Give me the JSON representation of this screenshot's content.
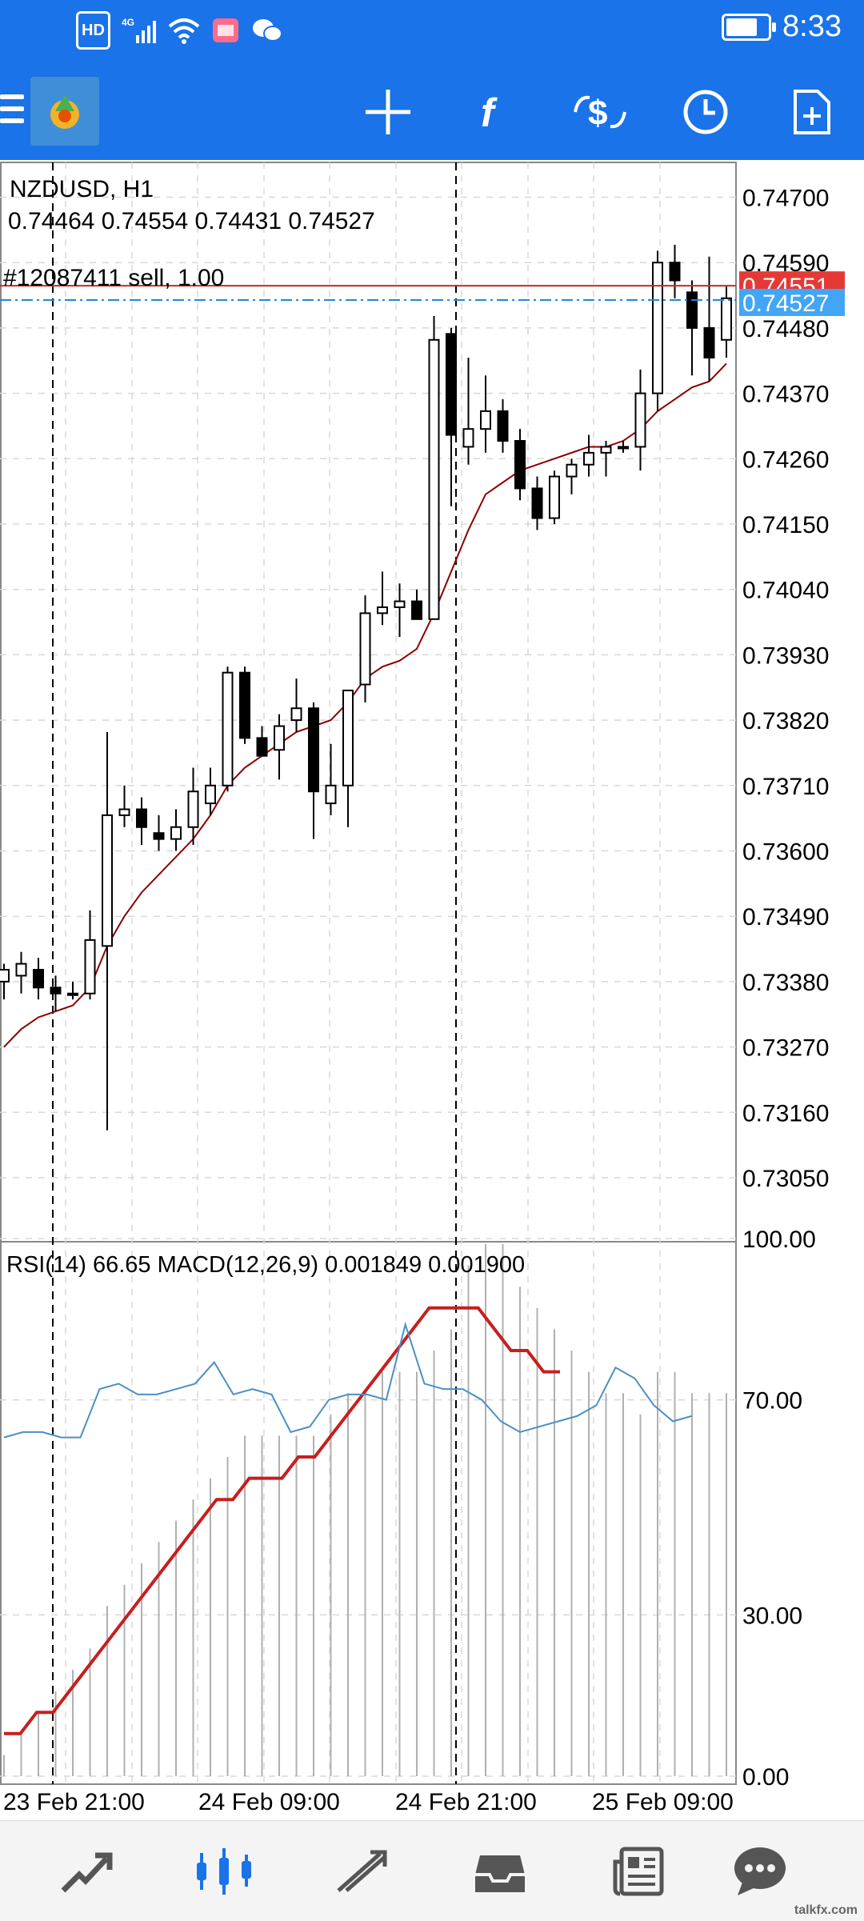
{
  "status_bar": {
    "time": "8:33",
    "hd_badge": "HD",
    "network": "4G"
  },
  "toolbar": {
    "menu": "menu-icon",
    "app_logo": "metatrader-logo",
    "buttons": [
      "crosshair-icon",
      "indicators-icon",
      "trade-icon",
      "clock-icon",
      "new-order-icon"
    ],
    "function_glyph": "f"
  },
  "chart": {
    "symbol": "NZDUSD, H1",
    "ohlc": "0.74464 0.74554 0.74431 0.74527",
    "position_label": "#12087411 sell, 1.00",
    "position_price": "0.74551",
    "bid_price": "0.74527",
    "price_axis": [
      "0.74700",
      "0.74590",
      "0.74480",
      "0.74370",
      "0.74260",
      "0.74150",
      "0.74040",
      "0.73930",
      "0.73820",
      "0.73710",
      "0.73600",
      "0.73490",
      "0.73380",
      "0.73270",
      "0.73160",
      "0.73050"
    ],
    "indicator_label": "RSI(14) 66.65 MACD(12,26,9) 0.001849 0.001900",
    "indicator_axis": [
      "100.00",
      "70.00",
      "30.00",
      "0.00"
    ],
    "time_axis": [
      "23 Feb 21:00",
      "24 Feb 09:00",
      "24 Feb 21:00",
      "25 Feb 09:00"
    ],
    "colors": {
      "position_line": "#c62828",
      "bid_line": "#1e88e5",
      "ma_line": "#8b0000",
      "rsi_line": "#4a90c4",
      "macd_signal": "#c81e1e"
    }
  },
  "chart_data": {
    "type": "candlestick",
    "symbol": "NZDUSD",
    "timeframe": "H1",
    "ylim": [
      0.7298,
      0.7475
    ],
    "candles": [
      {
        "o": 0.7338,
        "h": 0.7341,
        "l": 0.7335,
        "c": 0.734
      },
      {
        "o": 0.7339,
        "h": 0.7343,
        "l": 0.7336,
        "c": 0.7341
      },
      {
        "o": 0.734,
        "h": 0.7342,
        "l": 0.7335,
        "c": 0.7337
      },
      {
        "o": 0.7337,
        "h": 0.7339,
        "l": 0.7333,
        "c": 0.7336
      },
      {
        "o": 0.7336,
        "h": 0.7338,
        "l": 0.7335,
        "c": 0.7336
      },
      {
        "o": 0.7336,
        "h": 0.735,
        "l": 0.7335,
        "c": 0.7345
      },
      {
        "o": 0.7344,
        "h": 0.738,
        "l": 0.7313,
        "c": 0.7366
      },
      {
        "o": 0.7366,
        "h": 0.7371,
        "l": 0.7364,
        "c": 0.7367
      },
      {
        "o": 0.7367,
        "h": 0.7369,
        "l": 0.7361,
        "c": 0.7364
      },
      {
        "o": 0.7363,
        "h": 0.7366,
        "l": 0.736,
        "c": 0.7362
      },
      {
        "o": 0.7362,
        "h": 0.7367,
        "l": 0.736,
        "c": 0.7364
      },
      {
        "o": 0.7364,
        "h": 0.7374,
        "l": 0.7361,
        "c": 0.737
      },
      {
        "o": 0.7368,
        "h": 0.7374,
        "l": 0.7366,
        "c": 0.7371
      },
      {
        "o": 0.7371,
        "h": 0.7391,
        "l": 0.737,
        "c": 0.739
      },
      {
        "o": 0.739,
        "h": 0.7391,
        "l": 0.7378,
        "c": 0.7379
      },
      {
        "o": 0.7379,
        "h": 0.7381,
        "l": 0.7376,
        "c": 0.7376
      },
      {
        "o": 0.7377,
        "h": 0.7383,
        "l": 0.7372,
        "c": 0.7381
      },
      {
        "o": 0.7382,
        "h": 0.7389,
        "l": 0.738,
        "c": 0.7384
      },
      {
        "o": 0.7384,
        "h": 0.7385,
        "l": 0.7362,
        "c": 0.737
      },
      {
        "o": 0.7368,
        "h": 0.7378,
        "l": 0.7366,
        "c": 0.7371
      },
      {
        "o": 0.7371,
        "h": 0.7387,
        "l": 0.7364,
        "c": 0.7387
      },
      {
        "o": 0.7388,
        "h": 0.7403,
        "l": 0.7385,
        "c": 0.74
      },
      {
        "o": 0.74,
        "h": 0.7407,
        "l": 0.7398,
        "c": 0.7401
      },
      {
        "o": 0.7401,
        "h": 0.7405,
        "l": 0.7396,
        "c": 0.7402
      },
      {
        "o": 0.7402,
        "h": 0.7404,
        "l": 0.7399,
        "c": 0.7399
      },
      {
        "o": 0.7399,
        "h": 0.745,
        "l": 0.7399,
        "c": 0.7446
      },
      {
        "o": 0.7447,
        "h": 0.7448,
        "l": 0.7418,
        "c": 0.743
      },
      {
        "o": 0.7428,
        "h": 0.7443,
        "l": 0.7425,
        "c": 0.7431
      },
      {
        "o": 0.7431,
        "h": 0.744,
        "l": 0.7427,
        "c": 0.7434
      },
      {
        "o": 0.7434,
        "h": 0.7436,
        "l": 0.7427,
        "c": 0.7429
      },
      {
        "o": 0.7429,
        "h": 0.7431,
        "l": 0.7419,
        "c": 0.7421
      },
      {
        "o": 0.7421,
        "h": 0.7423,
        "l": 0.7414,
        "c": 0.7416
      },
      {
        "o": 0.7416,
        "h": 0.7424,
        "l": 0.7415,
        "c": 0.7423
      },
      {
        "o": 0.7423,
        "h": 0.7426,
        "l": 0.742,
        "c": 0.7425
      },
      {
        "o": 0.7425,
        "h": 0.743,
        "l": 0.7423,
        "c": 0.7427
      },
      {
        "o": 0.7427,
        "h": 0.7429,
        "l": 0.7423,
        "c": 0.7428
      },
      {
        "o": 0.7428,
        "h": 0.7429,
        "l": 0.7427,
        "c": 0.7428
      },
      {
        "o": 0.7428,
        "h": 0.7441,
        "l": 0.7424,
        "c": 0.7437
      },
      {
        "o": 0.7437,
        "h": 0.7461,
        "l": 0.7434,
        "c": 0.7459
      },
      {
        "o": 0.7459,
        "h": 0.7462,
        "l": 0.7453,
        "c": 0.7456
      },
      {
        "o": 0.7454,
        "h": 0.7456,
        "l": 0.744,
        "c": 0.7448
      },
      {
        "o": 0.7448,
        "h": 0.746,
        "l": 0.7439,
        "c": 0.7443
      },
      {
        "o": 0.7446,
        "h": 0.7455,
        "l": 0.7443,
        "c": 0.7453
      }
    ],
    "moving_average": [
      0.7327,
      0.733,
      0.7332,
      0.7333,
      0.7334,
      0.7337,
      0.7344,
      0.7349,
      0.7353,
      0.7356,
      0.7359,
      0.7362,
      0.7366,
      0.7371,
      0.7374,
      0.7376,
      0.7378,
      0.738,
      0.7381,
      0.7382,
      0.7385,
      0.7389,
      0.7391,
      0.7392,
      0.7394,
      0.74,
      0.7407,
      0.7414,
      0.742,
      0.7422,
      0.7424,
      0.7425,
      0.7426,
      0.7427,
      0.7428,
      0.7428,
      0.7429,
      0.7431,
      0.7434,
      0.7436,
      0.7438,
      0.7439,
      0.7442
    ],
    "rsi": [
      63,
      64,
      64,
      63,
      63,
      72,
      73,
      71,
      71,
      72,
      73,
      77,
      71,
      72,
      71,
      64,
      65,
      70,
      71,
      71,
      70,
      84,
      73,
      72,
      72,
      70,
      66,
      64,
      65,
      66,
      67,
      69,
      76,
      74,
      69,
      66,
      67
    ],
    "macd_hist": [
      0.0001,
      0.0002,
      0.0003,
      0.0004,
      0.0005,
      0.0006,
      0.0008,
      0.0009,
      0.001,
      0.0011,
      0.0012,
      0.0013,
      0.0014,
      0.0015,
      0.0016,
      0.0016,
      0.0016,
      0.0016,
      0.0016,
      0.0017,
      0.0018,
      0.0018,
      0.0019,
      0.0019,
      0.0019,
      0.002,
      0.0021,
      0.0024,
      0.0025,
      0.0025,
      0.0023,
      0.0022,
      0.0021,
      0.002,
      0.0019,
      0.0018,
      0.0018,
      0.0017,
      0.0019,
      0.0019,
      0.0018,
      0.0018,
      0.0018
    ],
    "macd_signal": [
      0.0002,
      0.0002,
      0.0003,
      0.0003,
      0.0004,
      0.0005,
      0.0006,
      0.0007,
      0.0008,
      0.0009,
      0.001,
      0.0011,
      0.0012,
      0.0013,
      0.0013,
      0.0014,
      0.0014,
      0.0014,
      0.0015,
      0.0015,
      0.0016,
      0.0017,
      0.0018,
      0.0019,
      0.002,
      0.0021,
      0.0022,
      0.0022,
      0.0022,
      0.0022,
      0.0021,
      0.002,
      0.002,
      0.0019,
      0.0019
    ],
    "time_labels": [
      "23 Feb 21:00",
      "24 Feb 09:00",
      "24 Feb 21:00",
      "25 Feb 09:00"
    ]
  },
  "bottom_nav": [
    "quotes-icon",
    "chart-icon",
    "trade-icon",
    "history-icon",
    "news-icon",
    "messages-icon"
  ],
  "watermark": "talkfx.com"
}
